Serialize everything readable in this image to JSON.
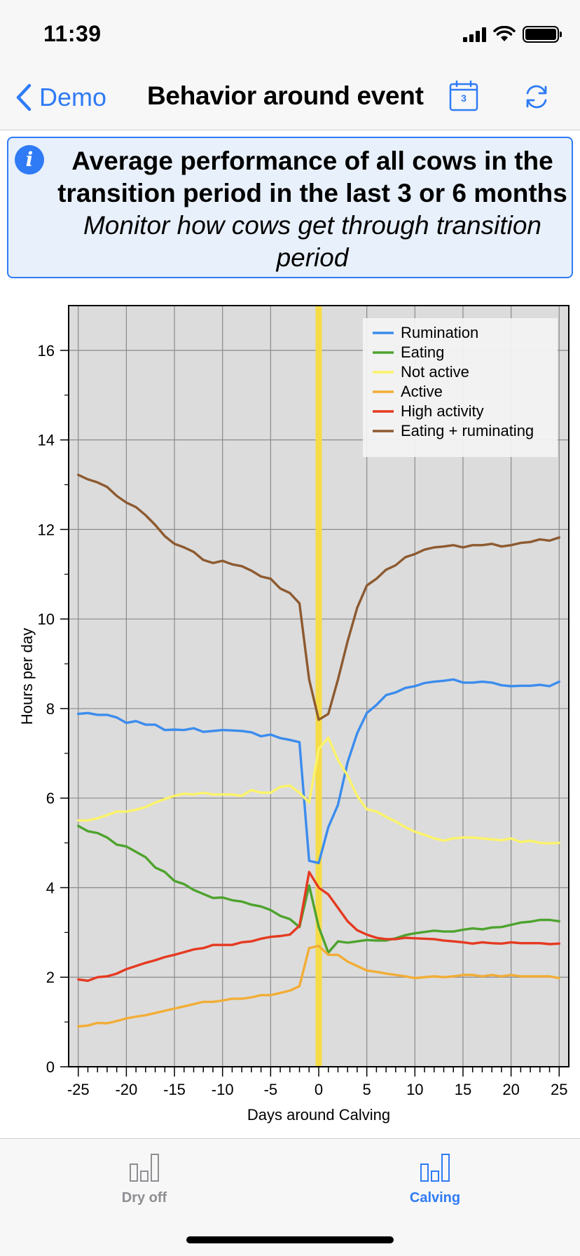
{
  "status": {
    "time": "11:39"
  },
  "nav": {
    "back_label": "Demo",
    "title": "Behavior around event",
    "calendar_day": "3"
  },
  "info": {
    "title": "Average performance of all cows in the transition period in the last 3 or 6 months",
    "subtitle": "Monitor how cows get through transition period"
  },
  "tabs": [
    {
      "label": "Dry off",
      "active": false
    },
    {
      "label": "Calving",
      "active": true
    }
  ],
  "colors": {
    "accent": "#2f7bf5",
    "plot_bg": "#dcdcdc",
    "event_line": "#f5dc46"
  },
  "chart_data": {
    "type": "line",
    "xlabel": "Days around Calving",
    "ylabel": "Hours per day",
    "xlim": [
      -26,
      26
    ],
    "ylim": [
      0,
      17
    ],
    "xticks": [
      -25,
      -20,
      -15,
      -10,
      -5,
      0,
      5,
      10,
      15,
      20,
      25
    ],
    "yticks": [
      0,
      2,
      4,
      6,
      8,
      10,
      12,
      14,
      16
    ],
    "grid": true,
    "legend_position": "top-right",
    "event_line_x": 0,
    "x": [
      -25,
      -24,
      -23,
      -22,
      -21,
      -20,
      -19,
      -18,
      -17,
      -16,
      -15,
      -14,
      -13,
      -12,
      -11,
      -10,
      -9,
      -8,
      -7,
      -6,
      -5,
      -4,
      -3,
      -2,
      -1,
      0,
      1,
      2,
      3,
      4,
      5,
      6,
      7,
      8,
      9,
      10,
      11,
      12,
      13,
      14,
      15,
      16,
      17,
      18,
      19,
      20,
      21,
      22,
      23,
      24,
      25
    ],
    "series": [
      {
        "name": "Rumination",
        "color": "#3b8ced",
        "values": [
          7.88,
          7.9,
          7.86,
          7.86,
          7.8,
          7.68,
          7.72,
          7.64,
          7.64,
          7.52,
          7.53,
          7.52,
          7.56,
          7.48,
          7.5,
          7.52,
          7.51,
          7.5,
          7.47,
          7.38,
          7.42,
          7.34,
          7.3,
          7.25,
          4.6,
          4.55,
          5.35,
          5.85,
          6.8,
          7.45,
          7.9,
          8.08,
          8.3,
          8.36,
          8.46,
          8.5,
          8.57,
          8.6,
          8.62,
          8.65,
          8.58,
          8.58,
          8.6,
          8.58,
          8.52,
          8.5,
          8.51,
          8.51,
          8.53,
          8.5,
          8.6
        ]
      },
      {
        "name": "Eating",
        "color": "#4ea32e",
        "values": [
          5.38,
          5.26,
          5.22,
          5.12,
          4.96,
          4.92,
          4.8,
          4.68,
          4.45,
          4.35,
          4.15,
          4.08,
          3.95,
          3.86,
          3.77,
          3.78,
          3.72,
          3.69,
          3.62,
          3.58,
          3.5,
          3.37,
          3.3,
          3.12,
          4.05,
          3.12,
          2.55,
          2.8,
          2.77,
          2.8,
          2.83,
          2.82,
          2.82,
          2.87,
          2.94,
          2.98,
          3.01,
          3.04,
          3.02,
          3.02,
          3.06,
          3.09,
          3.07,
          3.11,
          3.12,
          3.17,
          3.22,
          3.24,
          3.28,
          3.28,
          3.25
        ]
      },
      {
        "name": "Not active",
        "color": "#fbf36a",
        "values": [
          5.5,
          5.5,
          5.55,
          5.62,
          5.7,
          5.7,
          5.74,
          5.8,
          5.9,
          5.98,
          6.05,
          6.1,
          6.08,
          6.12,
          6.08,
          6.08,
          6.08,
          6.05,
          6.18,
          6.12,
          6.12,
          6.25,
          6.28,
          6.12,
          5.9,
          7.1,
          7.35,
          6.85,
          6.5,
          6.05,
          5.75,
          5.7,
          5.58,
          5.48,
          5.35,
          5.25,
          5.18,
          5.1,
          5.05,
          5.1,
          5.12,
          5.12,
          5.1,
          5.08,
          5.06,
          5.1,
          5.02,
          5.05,
          5.0,
          4.99,
          5.0
        ]
      },
      {
        "name": "Active",
        "color": "#f2ad36",
        "values": [
          0.9,
          0.92,
          0.98,
          0.97,
          1.02,
          1.08,
          1.12,
          1.15,
          1.2,
          1.25,
          1.3,
          1.35,
          1.4,
          1.45,
          1.45,
          1.48,
          1.52,
          1.52,
          1.55,
          1.6,
          1.6,
          1.65,
          1.7,
          1.8,
          2.65,
          2.7,
          2.5,
          2.5,
          2.35,
          2.25,
          2.15,
          2.12,
          2.08,
          2.05,
          2.02,
          1.98,
          2.0,
          2.02,
          2.0,
          2.02,
          2.05,
          2.05,
          2.02,
          2.05,
          2.02,
          2.05,
          2.02,
          2.02,
          2.02,
          2.02,
          1.98
        ]
      },
      {
        "name": "High activity",
        "color": "#e53a21",
        "values": [
          1.95,
          1.92,
          2.0,
          2.02,
          2.08,
          2.18,
          2.25,
          2.32,
          2.38,
          2.45,
          2.5,
          2.56,
          2.62,
          2.65,
          2.72,
          2.72,
          2.72,
          2.78,
          2.8,
          2.86,
          2.9,
          2.92,
          2.95,
          3.15,
          4.35,
          4.0,
          3.85,
          3.55,
          3.25,
          3.05,
          2.95,
          2.88,
          2.85,
          2.85,
          2.88,
          2.87,
          2.86,
          2.85,
          2.82,
          2.8,
          2.78,
          2.75,
          2.78,
          2.76,
          2.75,
          2.78,
          2.76,
          2.76,
          2.76,
          2.74,
          2.75
        ]
      },
      {
        "name": "Eating + ruminating",
        "color": "#8d5a30",
        "values": [
          13.22,
          13.12,
          13.05,
          12.95,
          12.75,
          12.6,
          12.5,
          12.32,
          12.1,
          11.85,
          11.68,
          11.6,
          11.5,
          11.32,
          11.25,
          11.3,
          11.22,
          11.18,
          11.08,
          10.95,
          10.9,
          10.68,
          10.58,
          10.35,
          8.65,
          7.75,
          7.88,
          8.65,
          9.5,
          10.25,
          10.75,
          10.9,
          11.1,
          11.2,
          11.38,
          11.45,
          11.55,
          11.6,
          11.62,
          11.65,
          11.6,
          11.65,
          11.65,
          11.68,
          11.62,
          11.65,
          11.7,
          11.72,
          11.78,
          11.75,
          11.82
        ]
      }
    ]
  }
}
